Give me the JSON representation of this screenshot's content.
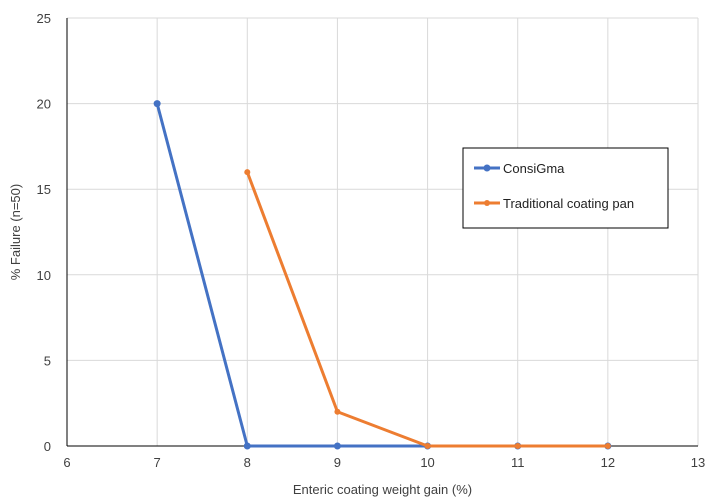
{
  "chart_data": {
    "type": "line",
    "title": "",
    "xlabel": "Enteric coating weight gain (%)",
    "ylabel": "% Failure (n=50)",
    "xlim": [
      6,
      13
    ],
    "ylim": [
      0,
      25
    ],
    "xticks": [
      6,
      7,
      8,
      9,
      10,
      11,
      12,
      13
    ],
    "yticks": [
      0,
      5,
      10,
      15,
      20,
      25
    ],
    "grid": true,
    "legend_position": "right",
    "series": [
      {
        "name": "ConsiGma",
        "color": "#4472c4",
        "x": [
          7,
          8,
          9,
          10,
          11,
          12
        ],
        "y": [
          20,
          0,
          0,
          0,
          0,
          0
        ]
      },
      {
        "name": "Traditional coating pan",
        "color": "#ed7d31",
        "x": [
          8,
          9,
          10,
          11,
          12
        ],
        "y": [
          16,
          2,
          0,
          0,
          0
        ]
      }
    ]
  }
}
